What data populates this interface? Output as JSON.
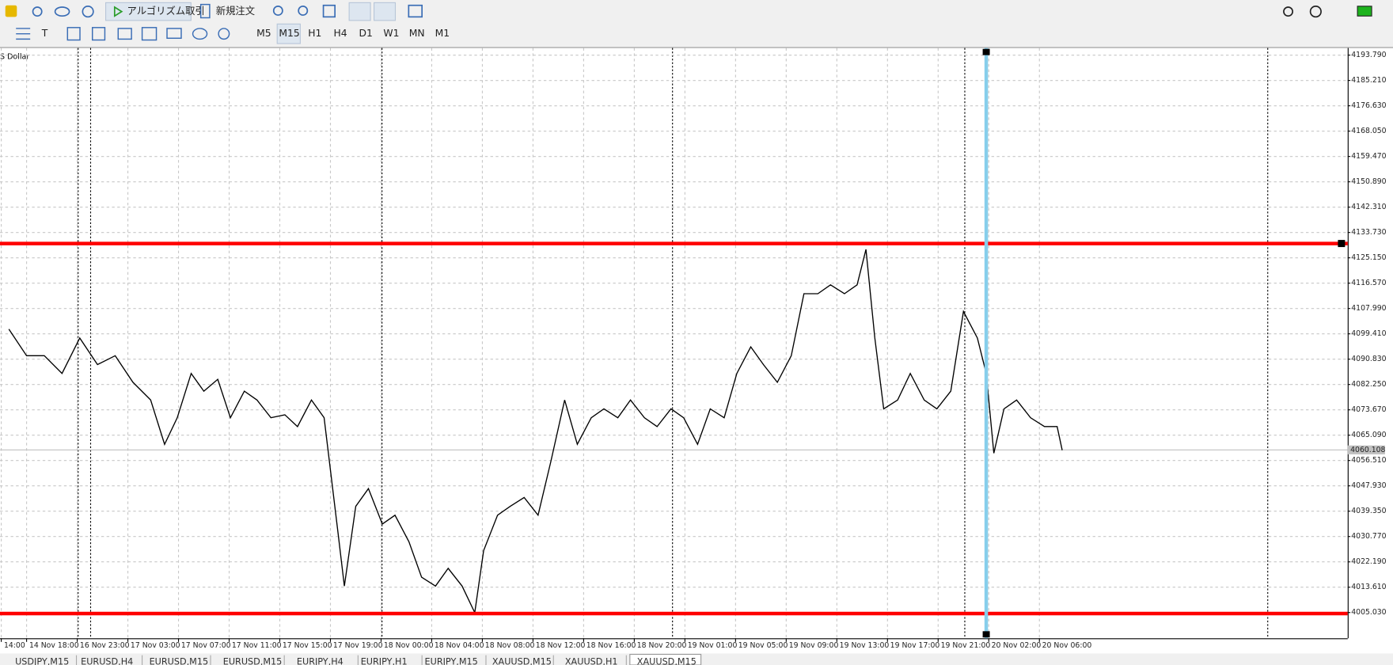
{
  "toolbar": {
    "algo": "アルゴリズム取引",
    "order": "新規注文",
    "timeframes": [
      "M5",
      "M15",
      "H1",
      "H4",
      "D1",
      "W1",
      "MN",
      "M1"
    ]
  },
  "symbol_label": "S Dollar",
  "tabs": [
    "USDJPY,M15",
    "EURUSD,H4",
    "EURUSD,M15",
    "EURUSD,M15",
    "EURJPY,H4",
    "EURJPY,H1",
    "EURJPY,M15",
    "XAUUSD,M15",
    "XAUUSD,H1",
    "XAUUSD,M15"
  ],
  "chart_data": {
    "type": "line",
    "grid": true,
    "ylim": [
      3996.3,
      4196.2
    ],
    "yticks": [
      {
        "value": 4005.03,
        "label": "4005.030"
      },
      {
        "value": 4013.61,
        "label": "4013.610"
      },
      {
        "value": 4022.19,
        "label": "4022.190"
      },
      {
        "value": 4030.77,
        "label": "4030.770"
      },
      {
        "value": 4039.35,
        "label": "4039.350"
      },
      {
        "value": 4047.93,
        "label": "4047.930"
      },
      {
        "value": 4056.51,
        "label": "4056.510"
      },
      {
        "value": 4065.09,
        "label": "4065.090"
      },
      {
        "value": 4073.67,
        "label": "4073.670"
      },
      {
        "value": 4082.25,
        "label": "4082.250"
      },
      {
        "value": 4090.83,
        "label": "4090.830"
      },
      {
        "value": 4099.41,
        "label": "4099.410"
      },
      {
        "value": 4107.99,
        "label": "4107.990"
      },
      {
        "value": 4116.57,
        "label": "4116.570"
      },
      {
        "value": 4125.15,
        "label": "4125.150"
      },
      {
        "value": 4133.73,
        "label": "4133.730"
      },
      {
        "value": 4142.31,
        "label": "4142.310"
      },
      {
        "value": 4150.89,
        "label": "4150.890"
      },
      {
        "value": 4159.47,
        "label": "4159.470"
      },
      {
        "value": 4168.05,
        "label": "4168.050"
      },
      {
        "value": 4176.63,
        "label": "4176.630"
      },
      {
        "value": 4185.21,
        "label": "4185.210"
      },
      {
        "value": 4193.79,
        "label": "4193.790"
      }
    ],
    "xlim": [
      -2.1,
      104.35
    ],
    "xticks": [
      {
        "value": -2,
        "label": "14:00"
      },
      {
        "value": 0,
        "label": "14 Nov 18:00"
      },
      {
        "value": 4,
        "label": "16 Nov 23:00"
      },
      {
        "value": 8,
        "label": "17 Nov 03:00"
      },
      {
        "value": 12,
        "label": "17 Nov 07:00"
      },
      {
        "value": 16,
        "label": "17 Nov 11:00"
      },
      {
        "value": 20,
        "label": "17 Nov 15:00"
      },
      {
        "value": 24,
        "label": "17 Nov 19:00"
      },
      {
        "value": 28,
        "label": "18 Nov 00:00"
      },
      {
        "value": 32,
        "label": "18 Nov 04:00"
      },
      {
        "value": 36,
        "label": "18 Nov 08:00"
      },
      {
        "value": 40,
        "label": "18 Nov 12:00"
      },
      {
        "value": 44,
        "label": "18 Nov 16:00"
      },
      {
        "value": 48,
        "label": "18 Nov 20:00"
      },
      {
        "value": 52,
        "label": "19 Nov 01:00"
      },
      {
        "value": 56,
        "label": "19 Nov 05:00"
      },
      {
        "value": 60,
        "label": "19 Nov 09:00"
      },
      {
        "value": 64,
        "label": "19 Nov 13:00"
      },
      {
        "value": 68,
        "label": "19 Nov 17:00"
      },
      {
        "value": 72,
        "label": "19 Nov 21:00"
      },
      {
        "value": 76,
        "label": "20 Nov 02:00"
      },
      {
        "value": 80,
        "label": "20 Nov 06:00"
      }
    ],
    "series": [
      {
        "color": "#000000",
        "x": [
          -1.4,
          0,
          1.4,
          2.8,
          4.2,
          5.6,
          7.0,
          8.4,
          9.8,
          10.9,
          11.9,
          13.0,
          14.0,
          15.1,
          16.1,
          17.2,
          18.2,
          19.3,
          20.4,
          21.4,
          22.5,
          23.5,
          24.6,
          25.1,
          26.0,
          27.0,
          28.1,
          29.1,
          30.2,
          31.2,
          32.3,
          33.3,
          34.4,
          35.4,
          36.1,
          37.2,
          38.2,
          39.3,
          40.4,
          41.4,
          42.5,
          43.5,
          44.6,
          45.6,
          46.7,
          47.7,
          48.8,
          49.8,
          50.9,
          51.9,
          53.0,
          54.0,
          55.1,
          56.1,
          57.2,
          58.2,
          59.3,
          60.4,
          61.4,
          62.5,
          63.5,
          64.6,
          65.6,
          66.3,
          67.0,
          67.7,
          68.8,
          69.8,
          70.9,
          71.9,
          73.0,
          74.0,
          75.1,
          75.8,
          76.4,
          77.2,
          78.2,
          79.3,
          80.4,
          81.4,
          81.8
        ],
        "values": [
          4101,
          4092,
          4092,
          4086,
          4098,
          4089,
          4092,
          4083,
          4077,
          4062,
          4071,
          4086,
          4080,
          4084,
          4071,
          4080,
          4077,
          4071,
          4072,
          4068,
          4077,
          4071,
          4032,
          4014,
          4041,
          4047,
          4035,
          4038,
          4029,
          4017,
          4014,
          4020,
          4014,
          4005,
          4026,
          4038,
          4041,
          4044,
          4038,
          4056,
          4077,
          4062,
          4071,
          4074,
          4071,
          4077,
          4071,
          4068,
          4074,
          4071,
          4062,
          4074,
          4071,
          4086,
          4095,
          4089,
          4083,
          4092,
          4113,
          4113,
          4116,
          4113,
          4116,
          4128,
          4098,
          4074,
          4077,
          4086,
          4077,
          4074,
          4080,
          4107,
          4098,
          4086,
          4059,
          4074,
          4077,
          4071,
          4068,
          4068,
          4060
        ]
      }
    ],
    "levels": [
      4130.0,
      4004.7
    ],
    "level_color": "#ff0000",
    "vline_x": 75.8,
    "vline_color": "#87ceeb",
    "bid": 4060.108
  }
}
